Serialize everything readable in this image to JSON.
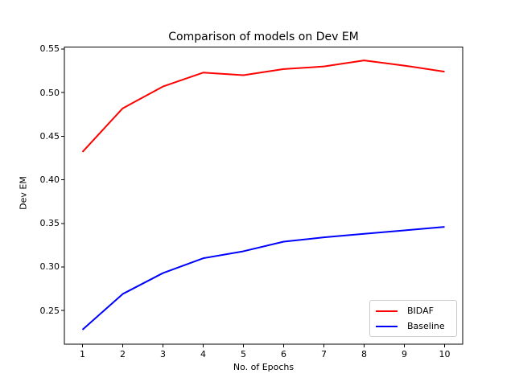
{
  "figure": {
    "background": "#ffffff",
    "axis_color": "#000000",
    "text_color": "#000000",
    "legend_border_color": "#cccccc"
  },
  "chart_data": {
    "type": "line",
    "title": "Comparison of models on Dev EM",
    "xlabel": "No. of Epochs",
    "ylabel": "Dev EM",
    "x": [
      1,
      2,
      3,
      4,
      5,
      6,
      7,
      8,
      9,
      10
    ],
    "series": [
      {
        "name": "BIDAF",
        "color": "#ff0000",
        "values": [
          0.432,
          0.482,
          0.507,
          0.523,
          0.52,
          0.527,
          0.53,
          0.537,
          0.531,
          0.524
        ]
      },
      {
        "name": "Baseline",
        "color": "#0000ff",
        "values": [
          0.228,
          0.269,
          0.293,
          0.31,
          0.318,
          0.329,
          0.334,
          0.338,
          0.342,
          0.346
        ]
      }
    ],
    "x_tick_labels": [
      "1",
      "2",
      "3",
      "4",
      "5",
      "6",
      "7",
      "8",
      "9",
      "10"
    ],
    "x_tick_values": [
      1,
      2,
      3,
      4,
      5,
      6,
      7,
      8,
      9,
      10
    ],
    "y_tick_labels": [
      "0.55",
      "0.50",
      "0.45",
      "0.40",
      "0.35",
      "0.30",
      "0.25"
    ],
    "y_tick_values": [
      0.55,
      0.5,
      0.45,
      0.4,
      0.35,
      0.3,
      0.25
    ],
    "xlim": [
      0.55,
      10.45
    ],
    "ylim": [
      0.2114,
      0.5523
    ],
    "grid": false,
    "legend_position": "lower right"
  }
}
